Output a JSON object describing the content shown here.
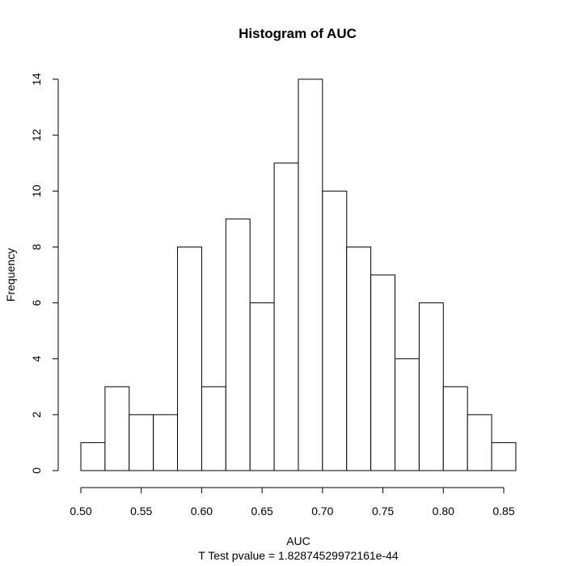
{
  "chart_data": {
    "type": "bar",
    "title": "Histogram of AUC",
    "xlabel": "AUC",
    "ylabel": "Frequency",
    "subtitle": "T Test pvalue = 1.82874529972161e-44",
    "bin_width": 0.02,
    "bins": [
      {
        "x0": 0.5,
        "x1": 0.52,
        "count": 1
      },
      {
        "x0": 0.52,
        "x1": 0.54,
        "count": 3
      },
      {
        "x0": 0.54,
        "x1": 0.56,
        "count": 2
      },
      {
        "x0": 0.56,
        "x1": 0.58,
        "count": 2
      },
      {
        "x0": 0.58,
        "x1": 0.6,
        "count": 8
      },
      {
        "x0": 0.6,
        "x1": 0.62,
        "count": 3
      },
      {
        "x0": 0.62,
        "x1": 0.64,
        "count": 9
      },
      {
        "x0": 0.64,
        "x1": 0.66,
        "count": 6
      },
      {
        "x0": 0.66,
        "x1": 0.68,
        "count": 11
      },
      {
        "x0": 0.68,
        "x1": 0.7,
        "count": 14
      },
      {
        "x0": 0.7,
        "x1": 0.72,
        "count": 10
      },
      {
        "x0": 0.72,
        "x1": 0.74,
        "count": 8
      },
      {
        "x0": 0.74,
        "x1": 0.76,
        "count": 7
      },
      {
        "x0": 0.76,
        "x1": 0.78,
        "count": 4
      },
      {
        "x0": 0.78,
        "x1": 0.8,
        "count": 6
      },
      {
        "x0": 0.8,
        "x1": 0.82,
        "count": 3
      },
      {
        "x0": 0.82,
        "x1": 0.84,
        "count": 2
      },
      {
        "x0": 0.84,
        "x1": 0.86,
        "count": 1
      }
    ],
    "xticks": [
      "0.50",
      "0.55",
      "0.60",
      "0.65",
      "0.70",
      "0.75",
      "0.80",
      "0.85"
    ],
    "yticks": [
      "0",
      "2",
      "4",
      "6",
      "8",
      "10",
      "12",
      "14"
    ],
    "xlim": [
      0.5,
      0.85
    ],
    "ylim": [
      0,
      14
    ],
    "grid": false,
    "legend": "none",
    "bar_fill": "#ffffff",
    "bar_stroke": "#000000"
  }
}
